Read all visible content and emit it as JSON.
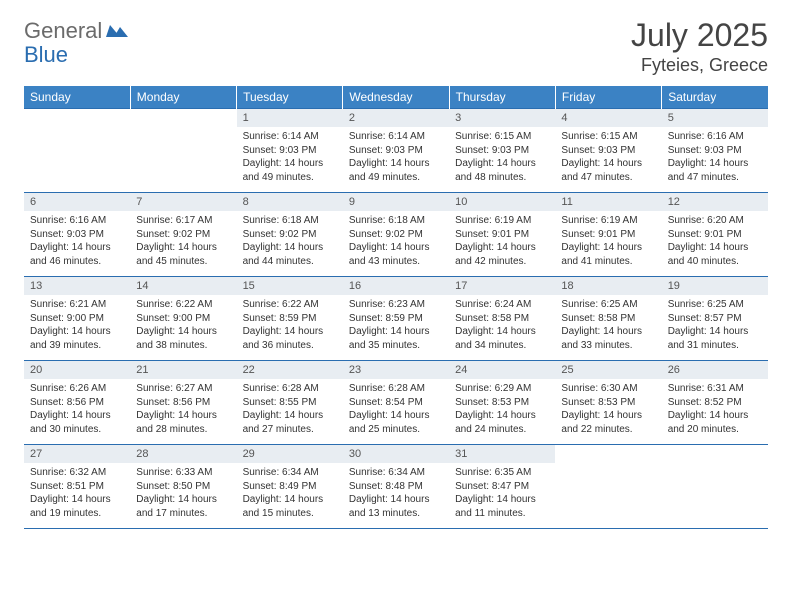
{
  "logo": {
    "part1": "General",
    "part2": "Blue"
  },
  "title": "July 2025",
  "location": "Fyteies, Greece",
  "colors": {
    "header_bg": "#3b82c4",
    "header_fg": "#ffffff",
    "border": "#2a6db0",
    "daynum_bg": "#e8edf2",
    "text": "#333333",
    "logo_gray": "#6b6b6b",
    "logo_blue": "#2a6db0"
  },
  "weekdays": [
    "Sunday",
    "Monday",
    "Tuesday",
    "Wednesday",
    "Thursday",
    "Friday",
    "Saturday"
  ],
  "weeks": [
    [
      null,
      null,
      {
        "n": "1",
        "sr": "6:14 AM",
        "ss": "9:03 PM",
        "dl": "14 hours and 49 minutes."
      },
      {
        "n": "2",
        "sr": "6:14 AM",
        "ss": "9:03 PM",
        "dl": "14 hours and 49 minutes."
      },
      {
        "n": "3",
        "sr": "6:15 AM",
        "ss": "9:03 PM",
        "dl": "14 hours and 48 minutes."
      },
      {
        "n": "4",
        "sr": "6:15 AM",
        "ss": "9:03 PM",
        "dl": "14 hours and 47 minutes."
      },
      {
        "n": "5",
        "sr": "6:16 AM",
        "ss": "9:03 PM",
        "dl": "14 hours and 47 minutes."
      }
    ],
    [
      {
        "n": "6",
        "sr": "6:16 AM",
        "ss": "9:03 PM",
        "dl": "14 hours and 46 minutes."
      },
      {
        "n": "7",
        "sr": "6:17 AM",
        "ss": "9:02 PM",
        "dl": "14 hours and 45 minutes."
      },
      {
        "n": "8",
        "sr": "6:18 AM",
        "ss": "9:02 PM",
        "dl": "14 hours and 44 minutes."
      },
      {
        "n": "9",
        "sr": "6:18 AM",
        "ss": "9:02 PM",
        "dl": "14 hours and 43 minutes."
      },
      {
        "n": "10",
        "sr": "6:19 AM",
        "ss": "9:01 PM",
        "dl": "14 hours and 42 minutes."
      },
      {
        "n": "11",
        "sr": "6:19 AM",
        "ss": "9:01 PM",
        "dl": "14 hours and 41 minutes."
      },
      {
        "n": "12",
        "sr": "6:20 AM",
        "ss": "9:01 PM",
        "dl": "14 hours and 40 minutes."
      }
    ],
    [
      {
        "n": "13",
        "sr": "6:21 AM",
        "ss": "9:00 PM",
        "dl": "14 hours and 39 minutes."
      },
      {
        "n": "14",
        "sr": "6:22 AM",
        "ss": "9:00 PM",
        "dl": "14 hours and 38 minutes."
      },
      {
        "n": "15",
        "sr": "6:22 AM",
        "ss": "8:59 PM",
        "dl": "14 hours and 36 minutes."
      },
      {
        "n": "16",
        "sr": "6:23 AM",
        "ss": "8:59 PM",
        "dl": "14 hours and 35 minutes."
      },
      {
        "n": "17",
        "sr": "6:24 AM",
        "ss": "8:58 PM",
        "dl": "14 hours and 34 minutes."
      },
      {
        "n": "18",
        "sr": "6:25 AM",
        "ss": "8:58 PM",
        "dl": "14 hours and 33 minutes."
      },
      {
        "n": "19",
        "sr": "6:25 AM",
        "ss": "8:57 PM",
        "dl": "14 hours and 31 minutes."
      }
    ],
    [
      {
        "n": "20",
        "sr": "6:26 AM",
        "ss": "8:56 PM",
        "dl": "14 hours and 30 minutes."
      },
      {
        "n": "21",
        "sr": "6:27 AM",
        "ss": "8:56 PM",
        "dl": "14 hours and 28 minutes."
      },
      {
        "n": "22",
        "sr": "6:28 AM",
        "ss": "8:55 PM",
        "dl": "14 hours and 27 minutes."
      },
      {
        "n": "23",
        "sr": "6:28 AM",
        "ss": "8:54 PM",
        "dl": "14 hours and 25 minutes."
      },
      {
        "n": "24",
        "sr": "6:29 AM",
        "ss": "8:53 PM",
        "dl": "14 hours and 24 minutes."
      },
      {
        "n": "25",
        "sr": "6:30 AM",
        "ss": "8:53 PM",
        "dl": "14 hours and 22 minutes."
      },
      {
        "n": "26",
        "sr": "6:31 AM",
        "ss": "8:52 PM",
        "dl": "14 hours and 20 minutes."
      }
    ],
    [
      {
        "n": "27",
        "sr": "6:32 AM",
        "ss": "8:51 PM",
        "dl": "14 hours and 19 minutes."
      },
      {
        "n": "28",
        "sr": "6:33 AM",
        "ss": "8:50 PM",
        "dl": "14 hours and 17 minutes."
      },
      {
        "n": "29",
        "sr": "6:34 AM",
        "ss": "8:49 PM",
        "dl": "14 hours and 15 minutes."
      },
      {
        "n": "30",
        "sr": "6:34 AM",
        "ss": "8:48 PM",
        "dl": "14 hours and 13 minutes."
      },
      {
        "n": "31",
        "sr": "6:35 AM",
        "ss": "8:47 PM",
        "dl": "14 hours and 11 minutes."
      },
      null,
      null
    ]
  ],
  "labels": {
    "sunrise": "Sunrise:",
    "sunset": "Sunset:",
    "daylight": "Daylight:"
  }
}
